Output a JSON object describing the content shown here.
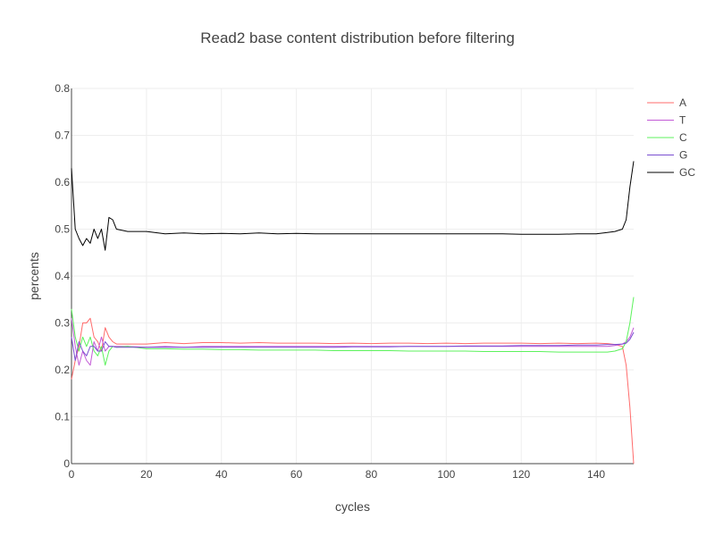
{
  "chart_data": {
    "type": "line",
    "title": "Read2 base content distribution before filtering",
    "xlabel": "cycles",
    "ylabel": "percents",
    "xlim": [
      0,
      150
    ],
    "ylim": [
      0,
      0.8
    ],
    "x_ticks": [
      0,
      20,
      40,
      60,
      80,
      100,
      120,
      140
    ],
    "y_ticks": [
      0,
      0.1,
      0.2,
      0.3,
      0.4,
      0.5,
      0.6,
      0.7,
      0.8
    ],
    "x_tick_labels": [
      "0",
      "20",
      "40",
      "60",
      "80",
      "100",
      "120",
      "140"
    ],
    "y_tick_labels": [
      "0",
      "0.1",
      "0.2",
      "0.3",
      "0.4",
      "0.5",
      "0.6",
      "0.7",
      "0.8"
    ],
    "grid": true,
    "legend_position": "top-right",
    "series": [
      {
        "name": "A",
        "color": "#ff6b6b",
        "x": [
          0,
          1,
          2,
          3,
          4,
          5,
          6,
          7,
          8,
          9,
          10,
          11,
          12,
          15,
          20,
          25,
          30,
          35,
          40,
          45,
          50,
          55,
          60,
          65,
          70,
          75,
          80,
          85,
          90,
          95,
          100,
          105,
          110,
          115,
          120,
          125,
          130,
          135,
          140,
          143,
          145,
          147,
          148,
          149,
          150
        ],
        "y": [
          0.18,
          0.22,
          0.25,
          0.3,
          0.3,
          0.31,
          0.27,
          0.26,
          0.24,
          0.29,
          0.27,
          0.26,
          0.255,
          0.255,
          0.255,
          0.258,
          0.256,
          0.258,
          0.258,
          0.257,
          0.258,
          0.257,
          0.257,
          0.257,
          0.256,
          0.257,
          0.256,
          0.257,
          0.257,
          0.256,
          0.257,
          0.256,
          0.257,
          0.257,
          0.257,
          0.256,
          0.257,
          0.256,
          0.257,
          0.256,
          0.254,
          0.25,
          0.21,
          0.12,
          0.0
        ]
      },
      {
        "name": "T",
        "color": "#c35bd6",
        "x": [
          0,
          1,
          2,
          3,
          4,
          5,
          6,
          7,
          8,
          9,
          10,
          11,
          12,
          15,
          20,
          25,
          30,
          35,
          40,
          45,
          50,
          55,
          60,
          65,
          70,
          75,
          80,
          85,
          90,
          95,
          100,
          105,
          110,
          115,
          120,
          125,
          130,
          135,
          140,
          143,
          145,
          147,
          148,
          149,
          150
        ],
        "y": [
          0.31,
          0.25,
          0.21,
          0.24,
          0.22,
          0.21,
          0.26,
          0.24,
          0.27,
          0.24,
          0.25,
          0.25,
          0.25,
          0.25,
          0.248,
          0.25,
          0.248,
          0.25,
          0.25,
          0.25,
          0.25,
          0.25,
          0.25,
          0.25,
          0.25,
          0.25,
          0.25,
          0.25,
          0.25,
          0.25,
          0.25,
          0.25,
          0.25,
          0.25,
          0.25,
          0.25,
          0.25,
          0.25,
          0.25,
          0.25,
          0.252,
          0.255,
          0.26,
          0.27,
          0.29
        ]
      },
      {
        "name": "C",
        "color": "#5cf25c",
        "x": [
          0,
          1,
          2,
          3,
          4,
          5,
          6,
          7,
          8,
          9,
          10,
          11,
          12,
          15,
          20,
          25,
          30,
          35,
          40,
          45,
          50,
          55,
          60,
          65,
          70,
          75,
          80,
          85,
          90,
          95,
          100,
          105,
          110,
          115,
          120,
          125,
          130,
          135,
          140,
          143,
          145,
          147,
          148,
          149,
          150
        ],
        "y": [
          0.33,
          0.27,
          0.24,
          0.27,
          0.25,
          0.27,
          0.24,
          0.23,
          0.25,
          0.21,
          0.24,
          0.25,
          0.248,
          0.25,
          0.245,
          0.245,
          0.244,
          0.244,
          0.243,
          0.243,
          0.242,
          0.242,
          0.242,
          0.242,
          0.241,
          0.241,
          0.241,
          0.241,
          0.24,
          0.24,
          0.24,
          0.24,
          0.239,
          0.239,
          0.239,
          0.239,
          0.238,
          0.238,
          0.238,
          0.238,
          0.24,
          0.245,
          0.26,
          0.3,
          0.355
        ]
      },
      {
        "name": "G",
        "color": "#7b4fd1",
        "x": [
          0,
          1,
          2,
          3,
          4,
          5,
          6,
          7,
          8,
          9,
          10,
          11,
          12,
          15,
          20,
          25,
          30,
          35,
          40,
          45,
          50,
          55,
          60,
          65,
          70,
          75,
          80,
          85,
          90,
          95,
          100,
          105,
          110,
          115,
          120,
          125,
          130,
          135,
          140,
          143,
          145,
          147,
          148,
          149,
          150
        ],
        "y": [
          0.27,
          0.22,
          0.26,
          0.24,
          0.23,
          0.25,
          0.25,
          0.24,
          0.24,
          0.26,
          0.25,
          0.25,
          0.248,
          0.248,
          0.248,
          0.248,
          0.248,
          0.248,
          0.248,
          0.248,
          0.248,
          0.248,
          0.248,
          0.248,
          0.248,
          0.249,
          0.249,
          0.249,
          0.25,
          0.25,
          0.25,
          0.251,
          0.251,
          0.251,
          0.252,
          0.252,
          0.252,
          0.253,
          0.253,
          0.254,
          0.254,
          0.255,
          0.257,
          0.265,
          0.28
        ]
      },
      {
        "name": "GC",
        "color": "#000000",
        "x": [
          0,
          1,
          2,
          3,
          4,
          5,
          6,
          7,
          8,
          9,
          10,
          11,
          12,
          15,
          20,
          25,
          30,
          35,
          40,
          45,
          50,
          55,
          60,
          65,
          70,
          75,
          80,
          85,
          90,
          95,
          100,
          105,
          110,
          115,
          120,
          125,
          130,
          135,
          140,
          143,
          145,
          147,
          148,
          149,
          150
        ],
        "y": [
          0.63,
          0.5,
          0.48,
          0.465,
          0.48,
          0.47,
          0.5,
          0.48,
          0.5,
          0.455,
          0.525,
          0.52,
          0.5,
          0.495,
          0.495,
          0.49,
          0.492,
          0.49,
          0.491,
          0.49,
          0.492,
          0.49,
          0.491,
          0.49,
          0.49,
          0.49,
          0.49,
          0.49,
          0.49,
          0.49,
          0.49,
          0.49,
          0.49,
          0.49,
          0.489,
          0.489,
          0.489,
          0.49,
          0.49,
          0.493,
          0.495,
          0.5,
          0.52,
          0.59,
          0.645
        ]
      }
    ]
  }
}
